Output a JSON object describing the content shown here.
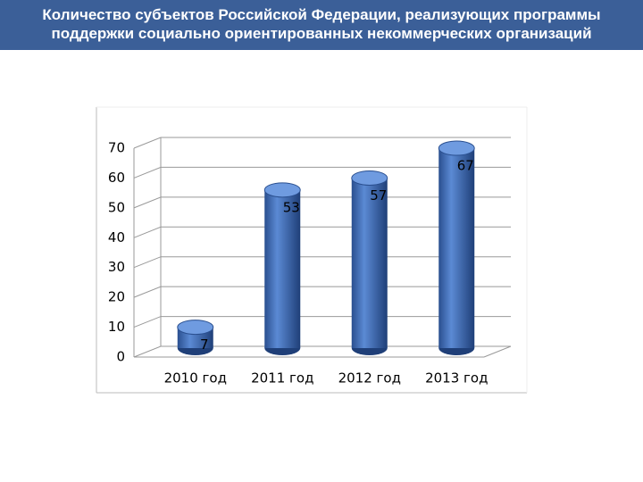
{
  "chart_data": {
    "type": "bar",
    "title": "Количество субъектов Российской Федерации, реализующих программы поддержки социально ориентированных некоммерческих организаций",
    "categories": [
      "2010 год",
      "2011 год",
      "2012 год",
      "2013 год"
    ],
    "values": [
      7,
      53,
      57,
      67
    ],
    "color": "#3d69b0",
    "ylim": [
      0,
      70
    ],
    "yticks": [
      0,
      10,
      20,
      30,
      40,
      50,
      60,
      70
    ],
    "grid": true
  }
}
